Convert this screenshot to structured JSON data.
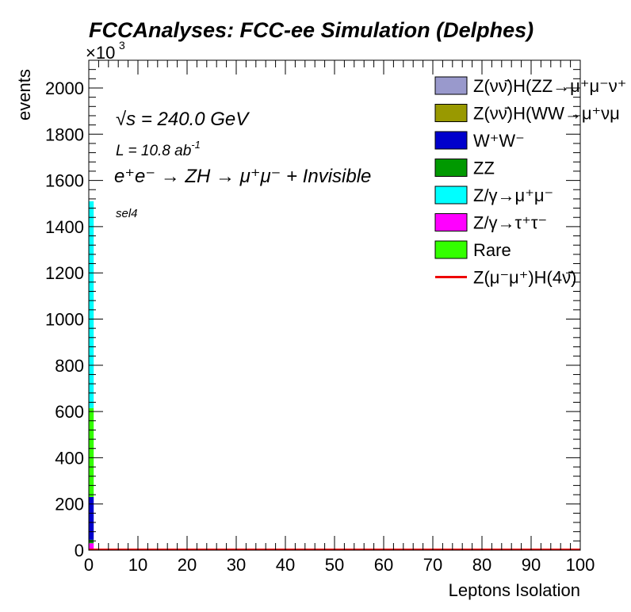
{
  "chart_data": {
    "type": "bar",
    "title": "FCCAnalyses: FCC-ee Simulation (Delphes)",
    "xlabel": "Leptons Isolation",
    "ylabel": "events",
    "y_multiplier": "×10",
    "y_multiplier_exp": "3",
    "xlim": [
      0,
      100
    ],
    "ylim": [
      0,
      2120
    ],
    "x_ticks": [
      "0",
      "10",
      "20",
      "30",
      "40",
      "50",
      "60",
      "70",
      "80",
      "90",
      "100"
    ],
    "y_ticks": [
      "0",
      "200",
      "400",
      "600",
      "800",
      "1000",
      "1200",
      "1400",
      "1600",
      "1800",
      "2000"
    ],
    "stacked": true,
    "bin_range": [
      0,
      1
    ],
    "annotations": {
      "sqrt_s_symbol": "√s",
      "sqrt_s_value": " = 240.0 GeV",
      "lumi_prefix": "L = 10.8 ab",
      "lumi_exp": "-1",
      "process": "e⁺e⁻ → ZH → μ⁺μ⁻ + Invisible",
      "selection": "sel4"
    },
    "series": [
      {
        "name": "Rare",
        "label": "Rare",
        "color": "#33ff00",
        "values": [
          5
        ]
      },
      {
        "name": "Z/γ→τ⁺τ⁻",
        "label": "Z/γ→τ⁺τ⁻",
        "color": "#ff00ff",
        "values": [
          25
        ]
      },
      {
        "name": "ZZ",
        "label": "ZZ",
        "color": "#009900",
        "values": [
          15
        ]
      },
      {
        "name": "W⁺W⁻",
        "label": "W⁺W⁻",
        "color": "#0000cc",
        "values": [
          185
        ]
      },
      {
        "name": "Rare",
        "label": "Rare",
        "color": "#33ff00",
        "values": [
          385
        ]
      },
      {
        "name": "Z/γ→μ⁺μ⁻",
        "label": "Z/γ→μ⁺μ⁻",
        "color": "#00ffff",
        "values": [
          895
        ]
      }
    ],
    "signal": {
      "name": "Z(μ⁻μ⁺)H(4ν̄)",
      "color": "#ee0000",
      "value": 0
    },
    "legend": {
      "placement": "top-right",
      "entries": [
        {
          "label": "Z(νν̄)H(ZZ→μ⁺μ⁻ν⁺",
          "color": "#9999cc",
          "kind": "box"
        },
        {
          "label": "Z(νν̄)H(WW→μ⁺νμ",
          "color": "#999900",
          "kind": "box"
        },
        {
          "label": "W⁺W⁻",
          "color": "#0000cc",
          "kind": "box"
        },
        {
          "label": "ZZ",
          "color": "#009900",
          "kind": "box"
        },
        {
          "label": "Z/γ→μ⁺μ⁻",
          "color": "#00ffff",
          "kind": "box"
        },
        {
          "label": "Z/γ→τ⁺τ⁻",
          "color": "#ff00ff",
          "kind": "box"
        },
        {
          "label": "Rare",
          "color": "#33ff00",
          "kind": "box"
        },
        {
          "label": "Z(μ⁻μ⁺)H(4ν̄)",
          "color": "#ee0000",
          "kind": "line"
        }
      ]
    }
  }
}
